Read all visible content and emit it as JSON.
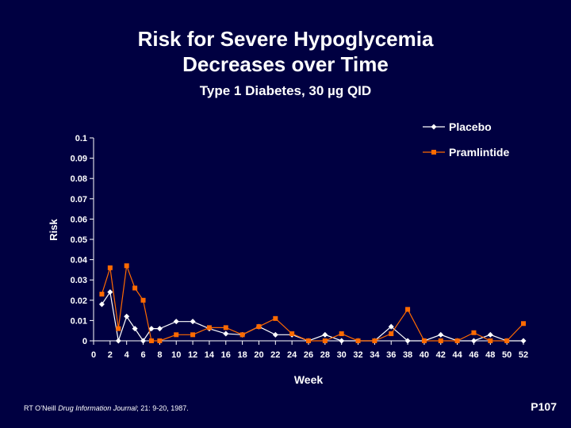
{
  "header": {
    "title_line1": "Risk for Severe Hypoglycemia",
    "title_line2": "Decreases over Time",
    "subtitle": "Type 1 Diabetes, 30 µg QID"
  },
  "footer": {
    "citation_prefix": "RT O’Neill ",
    "citation_journal": "Drug Information Journal",
    "citation_suffix": "; 21: 9-20, 1987.",
    "slide_code": "P107"
  },
  "colors": {
    "background": "#000041",
    "placebo": "#ffffff",
    "pramlintide": "#ff6a00",
    "axis": "#ffffff"
  },
  "chart_data": {
    "type": "line",
    "title": "",
    "xlabel": "Week",
    "ylabel": "Risk",
    "xlim": [
      0,
      52
    ],
    "ylim": [
      0,
      0.1
    ],
    "x_ticks": [
      0,
      2,
      4,
      6,
      8,
      10,
      12,
      14,
      16,
      18,
      20,
      22,
      24,
      26,
      28,
      30,
      32,
      34,
      36,
      38,
      40,
      42,
      44,
      46,
      48,
      50,
      52
    ],
    "y_ticks": [
      0,
      0.01,
      0.02,
      0.03,
      0.04,
      0.05,
      0.06,
      0.07,
      0.08,
      0.09,
      0.1
    ],
    "y_tick_labels": [
      "0",
      "0.01",
      "0.02",
      "0.03",
      "0.04",
      "0.05",
      "0.06",
      "0.07",
      "0.08",
      "0.09",
      "0.1"
    ],
    "grid": false,
    "legend_position": "top-right",
    "series": [
      {
        "name": "Placebo",
        "marker": "diamond",
        "color": "#ffffff",
        "x": [
          1,
          2,
          3,
          4,
          5,
          6,
          7,
          8,
          10,
          12,
          14,
          16,
          18,
          20,
          22,
          24,
          26,
          28,
          30,
          32,
          34,
          36,
          38,
          40,
          42,
          44,
          46,
          48,
          50,
          52
        ],
        "y": [
          0.018,
          0.024,
          0,
          0.012,
          0.006,
          0,
          0.006,
          0.006,
          0.0095,
          0.0095,
          0.006,
          0.0035,
          0.003,
          0.007,
          0.003,
          0.003,
          0,
          0.003,
          0,
          0,
          0,
          0.007,
          0,
          0,
          0.003,
          0,
          0,
          0.003,
          0,
          0
        ]
      },
      {
        "name": "Pramlintide",
        "marker": "square",
        "color": "#ff6a00",
        "x": [
          1,
          2,
          3,
          4,
          5,
          6,
          7,
          8,
          10,
          12,
          14,
          16,
          18,
          20,
          22,
          24,
          26,
          28,
          30,
          32,
          34,
          36,
          38,
          40,
          42,
          44,
          46,
          48,
          50,
          52
        ],
        "y": [
          0.023,
          0.036,
          0.006,
          0.037,
          0.026,
          0.02,
          0,
          0,
          0.003,
          0.003,
          0.0065,
          0.0065,
          0.003,
          0.007,
          0.011,
          0.0035,
          0,
          0,
          0.0035,
          0,
          0,
          0.0035,
          0.0155,
          0,
          0,
          0,
          0.004,
          0,
          0,
          0.0085
        ]
      }
    ]
  }
}
